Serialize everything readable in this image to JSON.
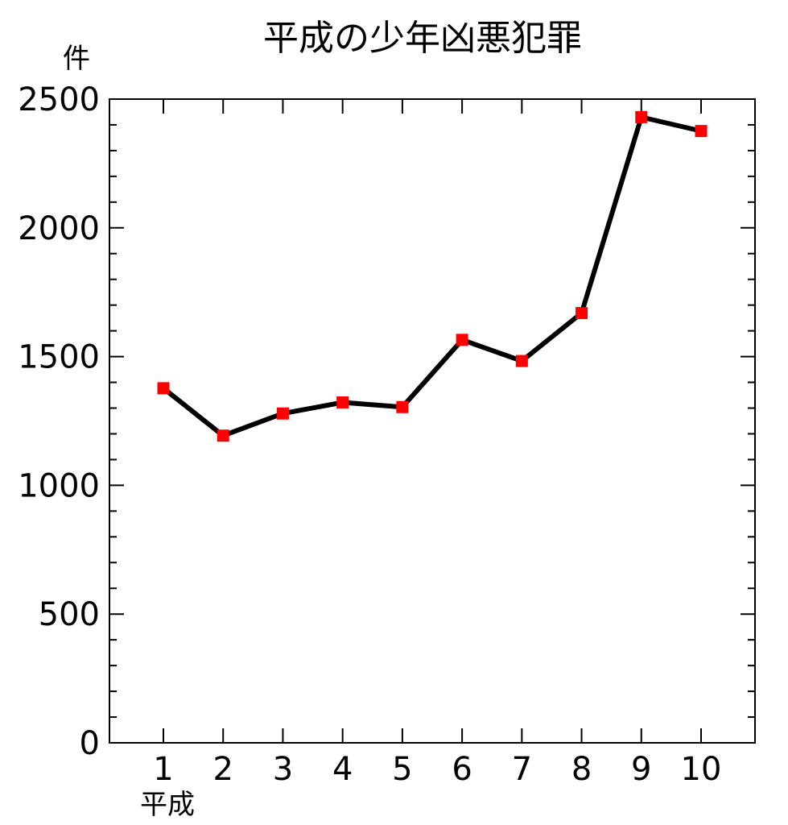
{
  "chart_data": {
    "type": "line",
    "title": "平成の少年凶悪犯罪",
    "ylabel": "件",
    "xlabel": "平成",
    "categories": [
      "1",
      "2",
      "3",
      "4",
      "5",
      "6",
      "7",
      "8",
      "9",
      "10"
    ],
    "series": [
      {
        "values": [
          1377,
          1193,
          1279,
          1322,
          1304,
          1565,
          1483,
          1669,
          2430,
          2376
        ],
        "line_color": "#000000",
        "marker_color": "#ff0000",
        "marker": "square"
      }
    ],
    "yticks": [
      "0",
      "500",
      "1000",
      "1500",
      "2000",
      "2500"
    ],
    "ylim": [
      0,
      2500
    ],
    "grid": false,
    "legend": "none"
  }
}
